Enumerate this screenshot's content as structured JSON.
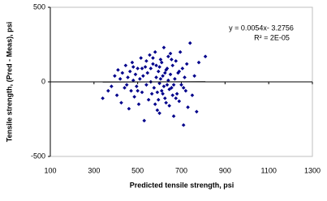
{
  "chart_data": {
    "type": "scatter",
    "x_label": "Predicted tensile strength, psi",
    "y_label": "Tensile strength, (Pred - Meas), psi",
    "equation": "y = 0.0054x- 3.2756",
    "r_squared": "R² = 2E-05",
    "xlim": [
      100,
      1300
    ],
    "ylim": [
      -500,
      500
    ],
    "xticks": [
      100,
      300,
      500,
      700,
      900,
      1100,
      1300
    ],
    "yticks": [
      500,
      0,
      -500
    ],
    "series": [
      {
        "color": "#00008b",
        "x": [
          340,
          365,
          380,
          395,
          405,
          410,
          420,
          425,
          430,
          440,
          445,
          450,
          455,
          460,
          465,
          470,
          475,
          480,
          485,
          490,
          495,
          500,
          505,
          510,
          515,
          520,
          525,
          530,
          535,
          540,
          545,
          550,
          555,
          560,
          565,
          570,
          575,
          580,
          585,
          590,
          595,
          600,
          605,
          610,
          615,
          620,
          625,
          630,
          635,
          640,
          645,
          650,
          655,
          660,
          665,
          670,
          675,
          680,
          685,
          690,
          695,
          700,
          705,
          710,
          715,
          720,
          725,
          730,
          740,
          750,
          760,
          770,
          780,
          810,
          560,
          580,
          600,
          620,
          640,
          660,
          600,
          610,
          590,
          630,
          570,
          650,
          615,
          625,
          605,
          595,
          585,
          645,
          635,
          655,
          665,
          675,
          540,
          520,
          500,
          480,
          690,
          710
        ],
        "values": [
          -110,
          -60,
          -30,
          40,
          -90,
          80,
          20,
          -140,
          60,
          -40,
          110,
          -20,
          30,
          -180,
          70,
          -60,
          130,
          10,
          -100,
          50,
          -30,
          90,
          -150,
          20,
          160,
          -70,
          40,
          -260,
          100,
          -20,
          60,
          -120,
          180,
          0,
          -80,
          120,
          -40,
          200,
          30,
          -190,
          70,
          -10,
          150,
          -60,
          40,
          230,
          -110,
          80,
          -20,
          170,
          -160,
          50,
          -40,
          110,
          -230,
          20,
          140,
          -80,
          60,
          -130,
          200,
          -20,
          90,
          -290,
          30,
          -60,
          120,
          -170,
          260,
          -90,
          40,
          -200,
          130,
          170,
          90,
          -150,
          100,
          -30,
          10,
          -90,
          -210,
          130,
          -70,
          -140,
          160,
          190,
          -80,
          60,
          20,
          -120,
          110,
          -50,
          90,
          150,
          -20,
          -110,
          140,
          90,
          -60,
          100,
          70,
          -40
        ]
      }
    ],
    "trendline": {
      "color": "#000000",
      "x": [
        340,
        810
      ],
      "y": [
        -1.44,
        1.1
      ]
    }
  }
}
